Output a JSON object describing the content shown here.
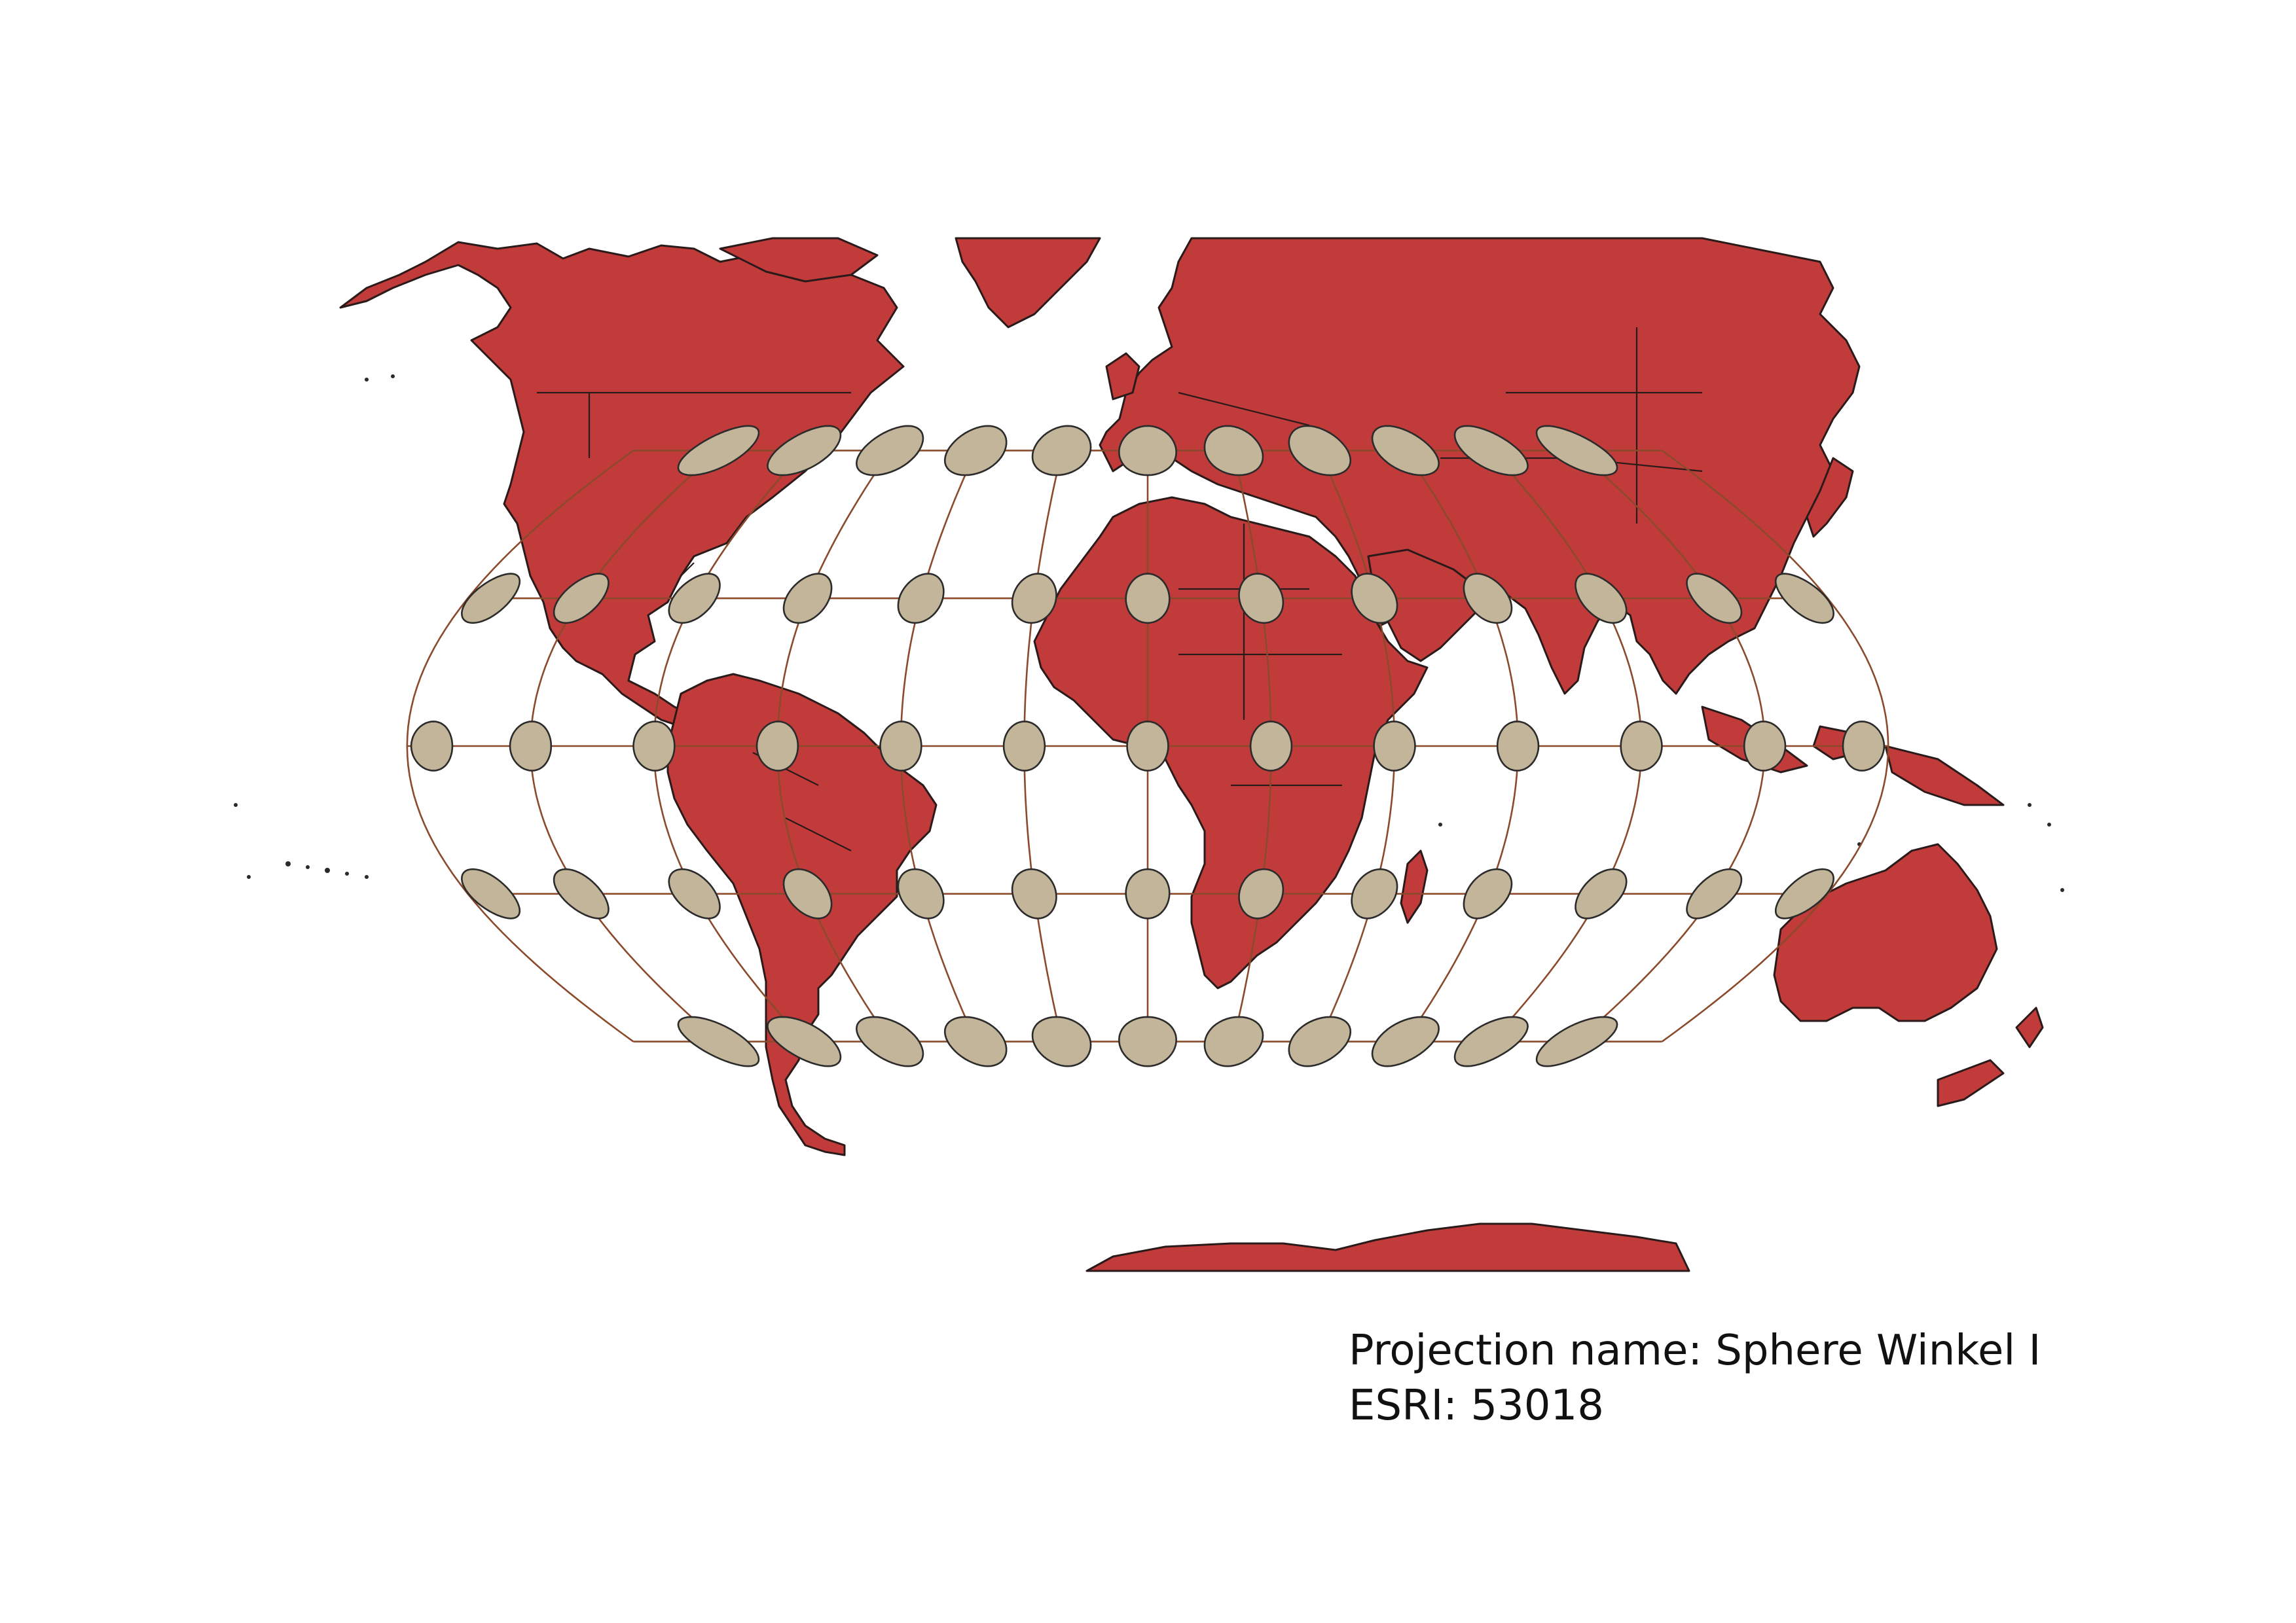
{
  "map": {
    "projection_label": "Projection name: Sphere Winkel I",
    "code_label": "ESRI: 53018",
    "colors": {
      "land": "#c23b3b",
      "indicatrix": "#c2b599",
      "graticule": "#8b4a2b",
      "outline": "#2a1a1a",
      "background": "#ffffff"
    },
    "graticule": {
      "meridians_deg": [
        -180,
        -150,
        -120,
        -90,
        -60,
        -30,
        0,
        30,
        60,
        90,
        120,
        150,
        180
      ],
      "parallels_deg": [
        -60,
        -30,
        0,
        30,
        60
      ]
    },
    "tissot_indicatrix": {
      "longitudes_deg": [
        -150,
        -120,
        -90,
        -60,
        -30,
        0,
        30,
        60,
        90,
        120,
        150
      ],
      "latitudes_deg": [
        -60,
        -30,
        0,
        30,
        60
      ],
      "extra_longitudes_deg": [
        -180,
        180
      ]
    }
  }
}
